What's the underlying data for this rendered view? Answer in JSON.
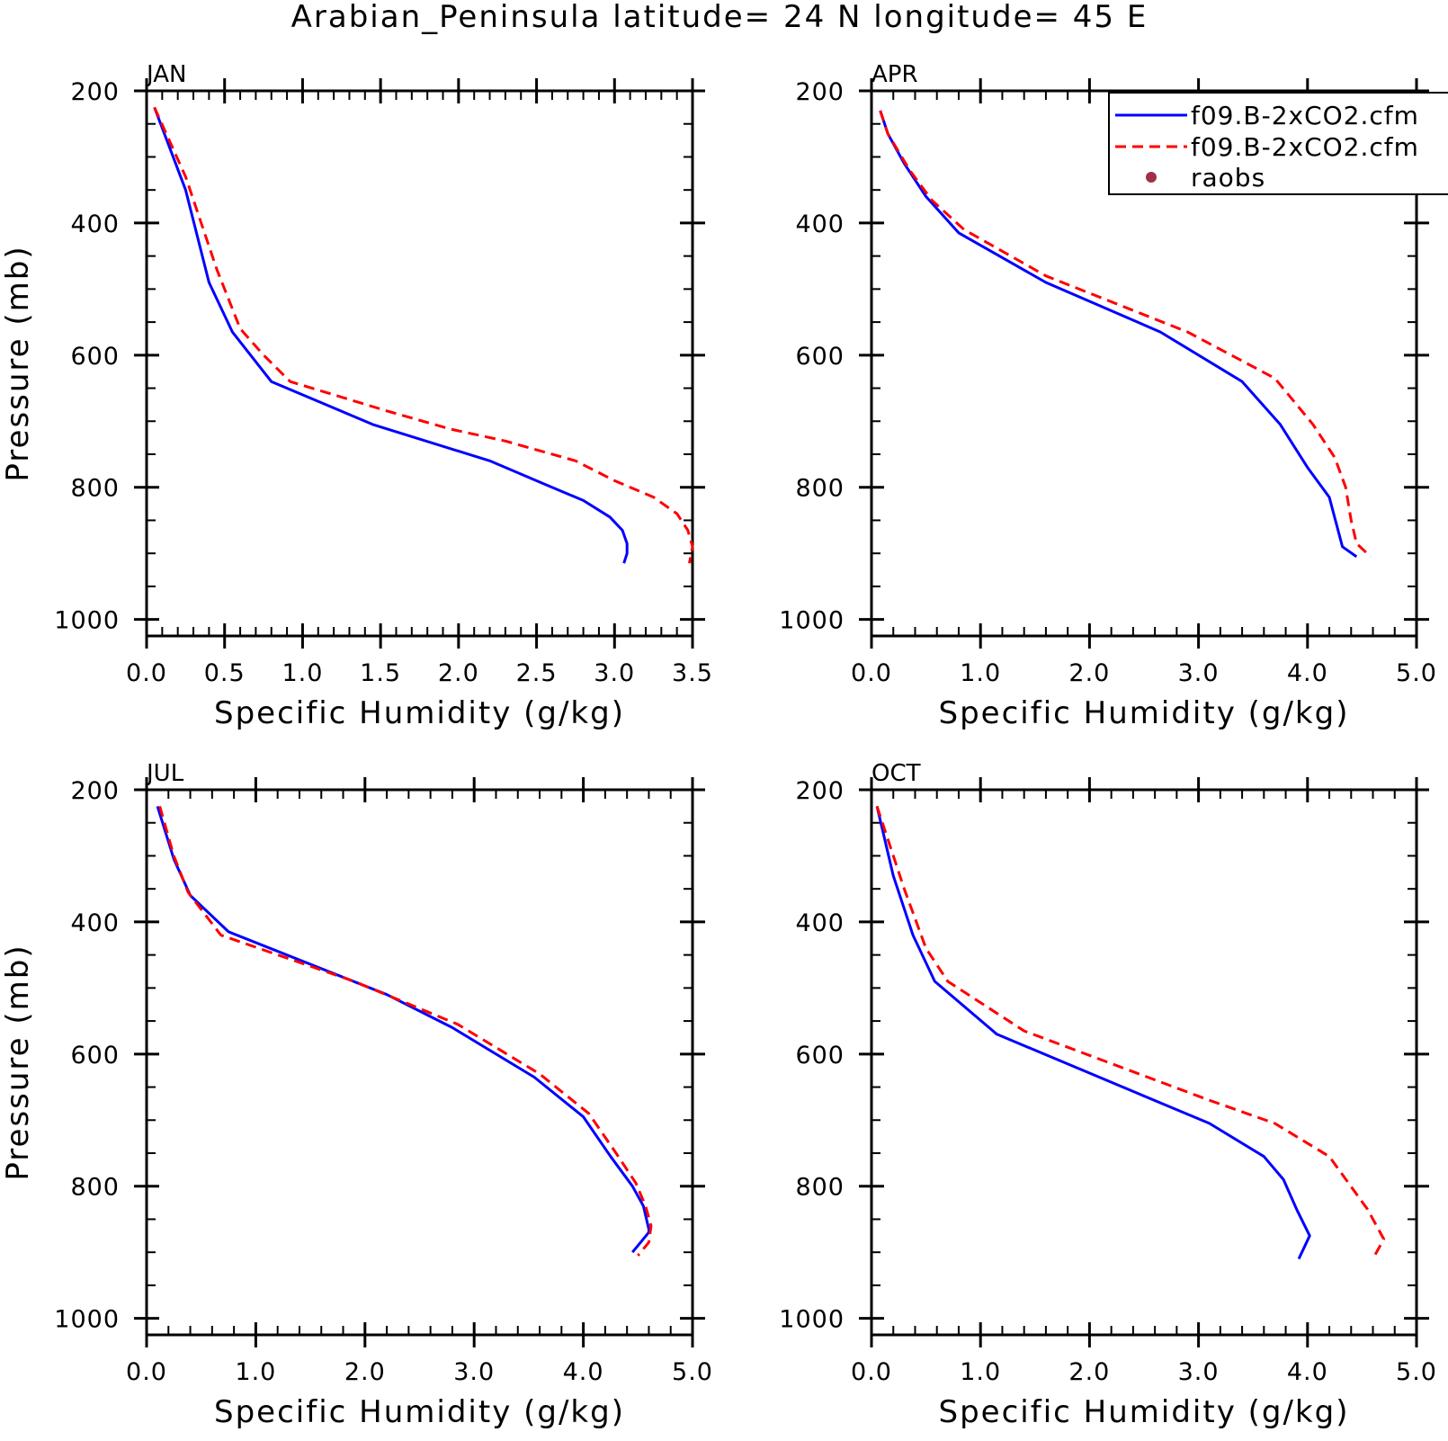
{
  "title": "Arabian_Peninsula  latitude= 24 N longitude= 45 E",
  "colors": {
    "model_solid": "#0000ff",
    "model_dashed": "#ff0000",
    "raobs": "#a0304a",
    "axes": "#000000"
  },
  "legend": {
    "placement": "top-right of APR panel",
    "entries": [
      {
        "label": "f09.B-2xCO2.cfm",
        "style": "solid",
        "color": "#0000ff"
      },
      {
        "label": "f09.B-2xCO2.cfm",
        "style": "dashed",
        "color": "#ff0000"
      },
      {
        "label": "raobs",
        "style": "dot",
        "color": "#a0304a"
      }
    ]
  },
  "chart_data": [
    {
      "type": "line",
      "panel": "JAN",
      "xlabel": "Specific Humidity (g/kg)",
      "ylabel": "Pressure (mb)",
      "xlim": [
        0,
        3.5
      ],
      "ylim": [
        1000,
        200
      ],
      "y_inverted": true,
      "xticks": [
        "0.0",
        "0.5",
        "1.0",
        "1.5",
        "2.0",
        "2.5",
        "3.0",
        "3.5"
      ],
      "yticks": [
        "200",
        "400",
        "600",
        "800",
        "1000"
      ],
      "series": [
        {
          "style": "solid",
          "color": "#0000ff",
          "x": [
            0.05,
            0.25,
            0.4,
            0.55,
            0.8,
            1.45,
            2.2,
            2.55,
            2.8,
            2.97,
            3.05,
            3.08,
            3.08,
            3.06
          ],
          "y": [
            225,
            350,
            490,
            565,
            640,
            705,
            760,
            795,
            820,
            845,
            865,
            885,
            900,
            915
          ]
        },
        {
          "style": "dashed",
          "color": "#ff0000",
          "x": [
            0.05,
            0.25,
            0.45,
            0.6,
            0.75,
            0.92,
            1.55,
            1.95,
            2.3,
            2.75,
            3.0,
            3.25,
            3.4,
            3.47,
            3.5,
            3.48
          ],
          "y": [
            225,
            330,
            470,
            560,
            600,
            640,
            685,
            712,
            730,
            760,
            790,
            815,
            840,
            865,
            890,
            915
          ]
        }
      ]
    },
    {
      "type": "line",
      "panel": "APR",
      "xlabel": "Specific Humidity (g/kg)",
      "ylabel": "",
      "xlim": [
        0,
        5
      ],
      "ylim": [
        1000,
        200
      ],
      "y_inverted": true,
      "xticks": [
        "0.0",
        "1.0",
        "2.0",
        "3.0",
        "4.0",
        "5.0"
      ],
      "yticks": [
        "200",
        "400",
        "600",
        "800",
        "1000"
      ],
      "series": [
        {
          "style": "solid",
          "color": "#0000ff",
          "x": [
            0.08,
            0.15,
            0.3,
            0.5,
            0.8,
            1.6,
            2.65,
            3.4,
            3.75,
            4.0,
            4.2,
            4.32,
            4.45
          ],
          "y": [
            230,
            265,
            310,
            360,
            415,
            490,
            565,
            640,
            705,
            770,
            815,
            890,
            905
          ]
        },
        {
          "style": "dashed",
          "color": "#ff0000",
          "x": [
            0.08,
            0.15,
            0.35,
            0.55,
            0.85,
            1.6,
            2.9,
            3.7,
            4.05,
            4.25,
            4.35,
            4.4,
            4.45,
            4.58
          ],
          "y": [
            230,
            265,
            320,
            365,
            410,
            480,
            565,
            635,
            705,
            755,
            800,
            850,
            885,
            905
          ]
        }
      ]
    },
    {
      "type": "line",
      "panel": "JUL",
      "xlabel": "Specific Humidity (g/kg)",
      "ylabel": "Pressure (mb)",
      "xlim": [
        0,
        5
      ],
      "ylim": [
        1000,
        200
      ],
      "y_inverted": true,
      "xticks": [
        "0.0",
        "1.0",
        "2.0",
        "3.0",
        "4.0",
        "5.0"
      ],
      "yticks": [
        "200",
        "400",
        "600",
        "800",
        "1000"
      ],
      "series": [
        {
          "style": "solid",
          "color": "#0000ff",
          "x": [
            0.1,
            0.25,
            0.4,
            0.75,
            2.2,
            2.8,
            3.55,
            4.0,
            4.25,
            4.45,
            4.55,
            4.6,
            4.6,
            4.45
          ],
          "y": [
            225,
            305,
            360,
            415,
            510,
            560,
            635,
            695,
            755,
            800,
            830,
            865,
            870,
            900
          ]
        },
        {
          "style": "dashed",
          "color": "#ff0000",
          "x": [
            0.12,
            0.25,
            0.38,
            0.68,
            1.9,
            2.85,
            3.6,
            4.05,
            4.3,
            4.48,
            4.57,
            4.62,
            4.6,
            4.5
          ],
          "y": [
            225,
            300,
            355,
            420,
            490,
            555,
            630,
            690,
            750,
            795,
            830,
            860,
            885,
            905
          ]
        }
      ]
    },
    {
      "type": "line",
      "panel": "OCT",
      "xlabel": "Specific Humidity (g/kg)",
      "ylabel": "",
      "xlim": [
        0,
        5
      ],
      "ylim": [
        1000,
        200
      ],
      "y_inverted": true,
      "xticks": [
        "0.0",
        "1.0",
        "2.0",
        "3.0",
        "4.0",
        "5.0"
      ],
      "yticks": [
        "200",
        "400",
        "600",
        "800",
        "1000"
      ],
      "series": [
        {
          "style": "solid",
          "color": "#0000ff",
          "x": [
            0.05,
            0.2,
            0.38,
            0.58,
            1.15,
            3.1,
            3.6,
            3.78,
            3.9,
            4.02,
            3.92
          ],
          "y": [
            225,
            330,
            420,
            490,
            570,
            705,
            755,
            790,
            835,
            875,
            910
          ]
        },
        {
          "style": "dashed",
          "color": "#ff0000",
          "x": [
            0.05,
            0.3,
            0.5,
            0.7,
            1.4,
            3.1,
            3.7,
            4.2,
            4.55,
            4.7,
            4.6
          ],
          "y": [
            225,
            350,
            440,
            490,
            565,
            670,
            705,
            755,
            835,
            880,
            910
          ]
        }
      ]
    }
  ]
}
